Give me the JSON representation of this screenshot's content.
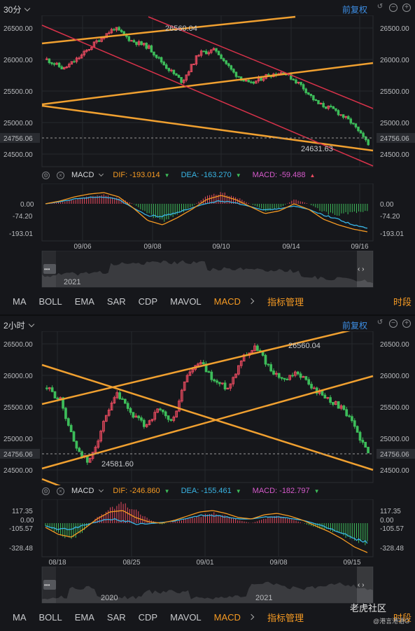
{
  "panels": [
    {
      "period": "30分",
      "adjust": "前复权",
      "price_axis_left": [
        "26500.00",
        "26000.00",
        "25500.00",
        "25000.00",
        "24756.06",
        "24500.00"
      ],
      "price_axis_right": [
        "26500.00",
        "26000.00",
        "25500.00",
        "25000.00",
        "24756.06",
        "24500.00"
      ],
      "high_label": "26560.04",
      "low_label": "24631.63",
      "indicator": {
        "name": "MACD",
        "dif_label": "DIF: -193.014",
        "dea_label": "DEA: -163.270",
        "macd_label": "MACD: -59.488",
        "dif_dir": "down",
        "dea_dir": "down",
        "macd_dir": "up"
      },
      "macd_axis_left": [
        "0.00",
        "-74.20",
        "-193.01"
      ],
      "macd_axis_right": [
        "0.00",
        "-74.20",
        "-193.01"
      ],
      "date_labels": [
        "09/06",
        "09/08",
        "09/10",
        "09/14",
        "09/16"
      ],
      "overview_years": [
        "2021"
      ]
    },
    {
      "period": "2小时",
      "adjust": "前复权",
      "price_axis_left": [
        "26500.00",
        "26000.00",
        "25500.00",
        "25000.00",
        "24756.06",
        "24500.00"
      ],
      "price_axis_right": [
        "26500.00",
        "26000.00",
        "25500.00",
        "25000.00",
        "24756.06",
        "24500.00"
      ],
      "high_label": "26560.04",
      "low_label": "24581.60",
      "indicator": {
        "name": "MACD",
        "dif_label": "DIF: -246.860",
        "dea_label": "DEA: -155.461",
        "macd_label": "MACD: -182.797",
        "dif_dir": "down",
        "dea_dir": "down",
        "macd_dir": "down"
      },
      "macd_axis_left": [
        "117.35",
        "0.00",
        "-105.57",
        "-328.48"
      ],
      "macd_axis_right": [
        "117.35",
        "0.00",
        "-105.57",
        "-328.48"
      ],
      "date_labels": [
        "08/18",
        "08/25",
        "09/01",
        "09/08",
        "09/15"
      ],
      "overview_years": [
        "2020",
        "2021"
      ]
    }
  ],
  "tabs": [
    "MA",
    "BOLL",
    "EMA",
    "SAR",
    "CDP",
    "MAVOL",
    "MACD"
  ],
  "active_tab": "MACD",
  "mgmt_label": "指标管理",
  "period_tab_label": "时段",
  "watermark": "老虎社区",
  "watermark_sub": "@港言港语G",
  "colors": {
    "up": "#e84a5f",
    "down": "#3dbd5a",
    "trend_orange": "#f0a030",
    "trend_red": "#d8324a",
    "dif": "#f59a23",
    "dea": "#39b6e6",
    "accent": "#3d8fe6"
  }
}
